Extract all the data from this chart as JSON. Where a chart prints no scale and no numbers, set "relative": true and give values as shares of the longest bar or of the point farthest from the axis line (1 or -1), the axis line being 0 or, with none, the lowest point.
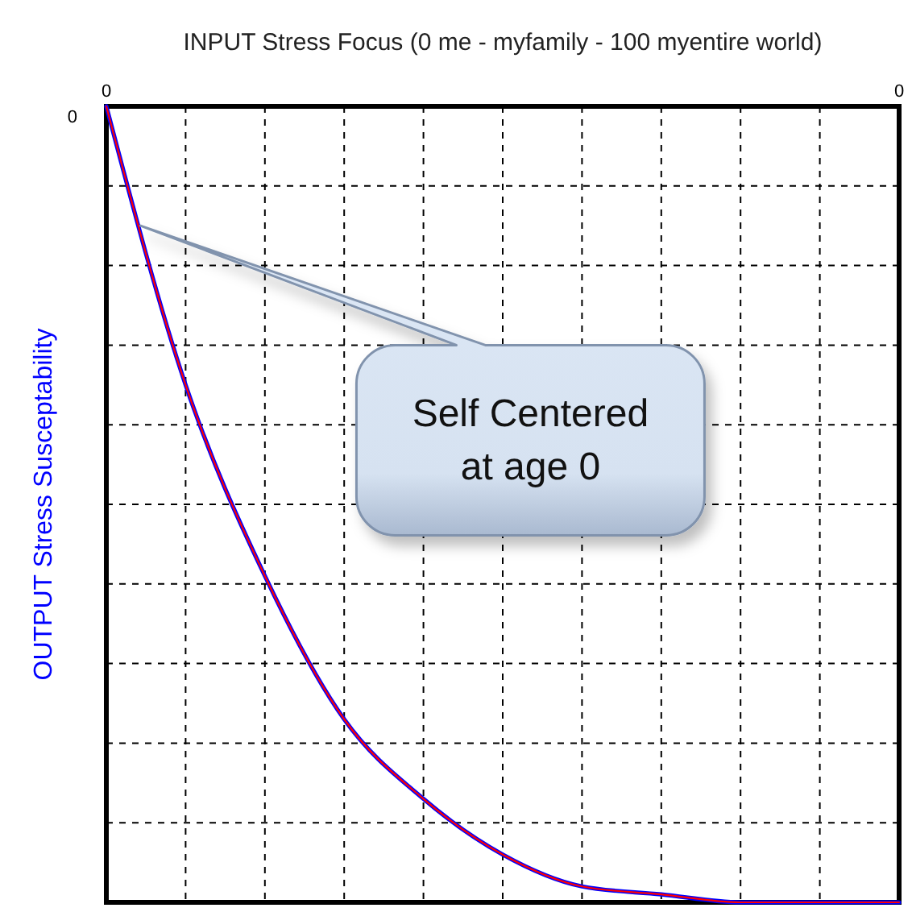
{
  "chart_data": {
    "type": "line",
    "title": "INPUT Stress Focus (0 me - myfamily - 100 myentire world)",
    "ylabel": "OUTPUT Stress Susceptability",
    "relative": true,
    "categories": [
      "0",
      null,
      null,
      null,
      null,
      null,
      null,
      null,
      null,
      null,
      "0"
    ],
    "series": [
      {
        "color": "#0000ff",
        "values": [
          1,
          0.65,
          0.41,
          0.23,
          0.13,
          0.06,
          0.02,
          0.01,
          0,
          0,
          0
        ]
      },
      {
        "color": "#ff0000",
        "values": [
          1,
          0.65,
          0.41,
          0.23,
          0.13,
          0.06,
          0.02,
          0.01,
          0,
          0,
          0
        ]
      }
    ],
    "grid": true,
    "annotations": [
      "0",
      "Self Centered\nat age 0"
    ]
  }
}
